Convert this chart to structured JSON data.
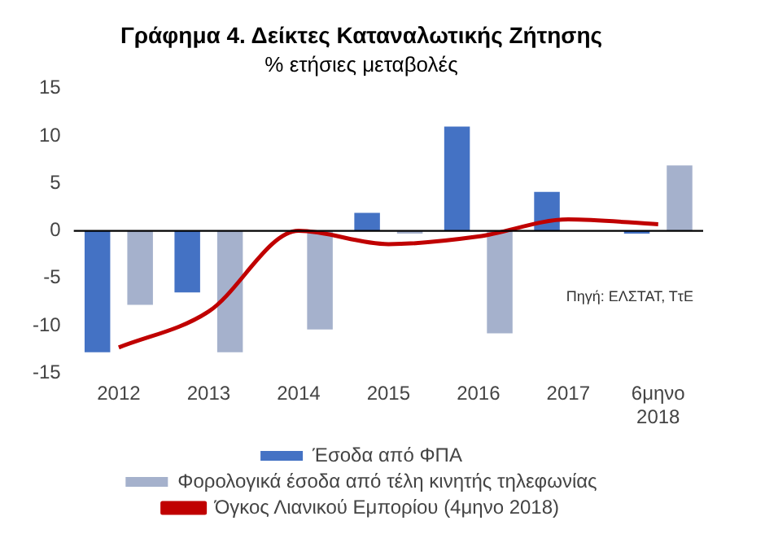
{
  "chart_data": {
    "type": "bar",
    "title": "Γράφημα 4. Δείκτες Καταναλωτικής Ζήτησης",
    "subtitle": "% ετήσιες μεταβολές",
    "categories": [
      "2012",
      "2013",
      "2014",
      "2015",
      "2016",
      "2017",
      "6μηνο 2018"
    ],
    "series": [
      {
        "name": "Έσοδα από ΦΠΑ",
        "color": "#4472c4",
        "values": [
          -12.8,
          -6.5,
          null,
          1.9,
          11,
          4.1,
          -0.3
        ]
      },
      {
        "name": "Φορολογικά έσοδα από τέλη κινητής τηλεφωνίας",
        "color": "#a5b1cc",
        "values": [
          -7.8,
          -12.8,
          -10.4,
          -0.3,
          -10.8,
          0,
          6.9
        ]
      },
      {
        "name": "Όγκος Λιανικού Εμπορίου (4μηνο 2018)",
        "type": "line",
        "color": "#c00000",
        "values": [
          -12.3,
          -8.5,
          0,
          -1.4,
          -0.6,
          1.2,
          0.7
        ]
      }
    ],
    "ylim": [
      -15,
      15
    ],
    "yticks": [
      -15,
      -10,
      -5,
      0,
      5,
      10,
      15
    ],
    "grid": false,
    "ref_lines": [
      {
        "axis": "y",
        "value": 0,
        "color": "#000000"
      }
    ],
    "legend": "bottom",
    "annotations": [
      "Πηγή: ΕΛΣΤΑΤ, ΤτΕ"
    ]
  }
}
